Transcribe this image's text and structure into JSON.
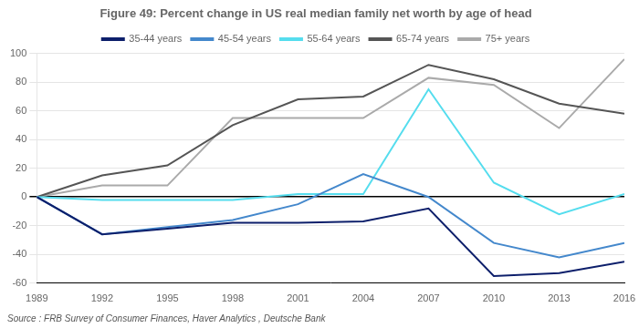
{
  "chart_data": {
    "type": "line",
    "title": "Figure 49: Percent change in US real median family net worth by age of head",
    "annotations": [
      "Source : FRB Survey of Consumer Finances, Haver Analytics , Deutsche Bank"
    ],
    "x": [
      1989,
      1992,
      1995,
      1998,
      2001,
      2004,
      2007,
      2010,
      2013,
      2016
    ],
    "series": [
      {
        "name": "35-44 years",
        "color": "#0d1f6b",
        "values": [
          0,
          -26,
          -22,
          -18,
          -18,
          -17,
          -8,
          -55,
          -53,
          -45
        ]
      },
      {
        "name": "45-54 years",
        "color": "#4488cc",
        "values": [
          0,
          -26,
          -21,
          -16,
          -5,
          16,
          0,
          -32,
          -42,
          -32
        ]
      },
      {
        "name": "55-64 years",
        "color": "#55ddee",
        "values": [
          0,
          -2,
          -2,
          -2,
          2,
          2,
          75,
          10,
          -12,
          2
        ]
      },
      {
        "name": "65-74 years",
        "color": "#555555",
        "values": [
          0,
          15,
          22,
          50,
          68,
          70,
          92,
          82,
          65,
          58
        ]
      },
      {
        "name": "75+ years",
        "color": "#aaaaaa",
        "values": [
          0,
          8,
          8,
          55,
          55,
          55,
          83,
          78,
          48,
          96
        ]
      }
    ],
    "xlim": [
      1989,
      2016
    ],
    "xticks": [
      1989,
      1992,
      1995,
      1998,
      2001,
      2004,
      2007,
      2010,
      2013,
      2016
    ],
    "ylim": [
      -60,
      100
    ],
    "yticks": [
      -60,
      -40,
      -20,
      0,
      20,
      40,
      60,
      80,
      100
    ],
    "grid": true,
    "legend": "top"
  }
}
